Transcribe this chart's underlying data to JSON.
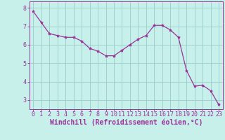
{
  "x": [
    0,
    1,
    2,
    3,
    4,
    5,
    6,
    7,
    8,
    9,
    10,
    11,
    12,
    13,
    14,
    15,
    16,
    17,
    18,
    19,
    20,
    21,
    22,
    23
  ],
  "y": [
    7.8,
    7.2,
    6.6,
    6.5,
    6.4,
    6.4,
    6.2,
    5.8,
    5.65,
    5.4,
    5.4,
    5.7,
    6.0,
    6.3,
    6.5,
    7.05,
    7.05,
    6.8,
    6.4,
    4.6,
    3.75,
    3.8,
    3.5,
    2.75
  ],
  "line_color": "#993399",
  "marker": "*",
  "marker_size": 3,
  "background_color": "#c8f0eb",
  "grid_color": "#99cccc",
  "xlabel": "Windchill (Refroidissement éolien,°C)",
  "ylabel": "",
  "xlabel_color": "#993399",
  "tick_color": "#993399",
  "axis_color": "#993399",
  "ylim": [
    2.5,
    8.35
  ],
  "xlim": [
    -0.5,
    23.5
  ],
  "yticks": [
    3,
    4,
    5,
    6,
    7,
    8
  ],
  "xticks": [
    0,
    1,
    2,
    3,
    4,
    5,
    6,
    7,
    8,
    9,
    10,
    11,
    12,
    13,
    14,
    15,
    16,
    17,
    18,
    19,
    20,
    21,
    22,
    23
  ],
  "xlabel_fontsize": 7,
  "tick_fontsize": 6,
  "linewidth": 0.9
}
